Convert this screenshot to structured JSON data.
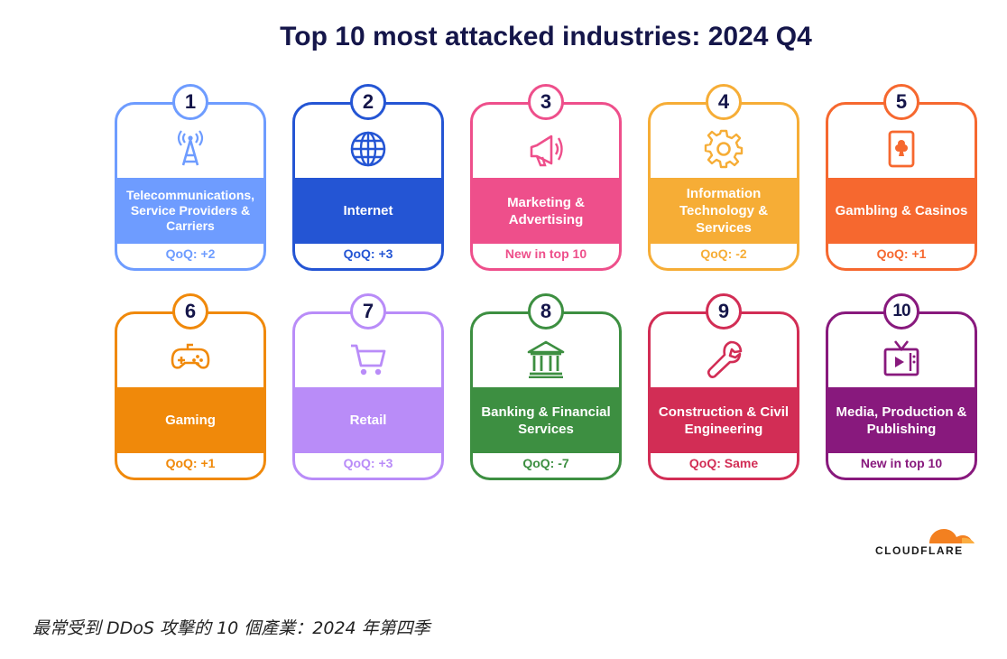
{
  "chart_data": {
    "type": "table",
    "title": "Top 10 most attacked industries: 2024 Q4",
    "columns": [
      "rank",
      "industry",
      "change"
    ],
    "rows": [
      {
        "rank": "1",
        "industry": "Telecommunications, Service Providers & Carriers",
        "change": "QoQ: +2",
        "color": "#6e9cff",
        "icon": "cell-tower-icon"
      },
      {
        "rank": "2",
        "industry": "Internet",
        "change": "QoQ: +3",
        "color": "#2455d4",
        "icon": "globe-icon"
      },
      {
        "rank": "3",
        "industry": "Marketing & Advertising",
        "change": "New in top 10",
        "color": "#ee4f8b",
        "icon": "megaphone-icon"
      },
      {
        "rank": "4",
        "industry": "Information Technology & Services",
        "change": "QoQ: -2",
        "color": "#f6ad36",
        "icon": "gear-icon"
      },
      {
        "rank": "5",
        "industry": "Gambling & Casinos",
        "change": "QoQ: +1",
        "color": "#f6682f",
        "icon": "playing-card-icon"
      },
      {
        "rank": "6",
        "industry": "Gaming",
        "change": "QoQ: +1",
        "color": "#f0890a",
        "icon": "gamepad-icon"
      },
      {
        "rank": "7",
        "industry": "Retail",
        "change": "QoQ: +3",
        "color": "#b98cf8",
        "icon": "shopping-cart-icon"
      },
      {
        "rank": "8",
        "industry": "Banking & Financial Services",
        "change": "QoQ: -7",
        "color": "#3d8f41",
        "icon": "bank-icon"
      },
      {
        "rank": "9",
        "industry": "Construction & Civil Engineering",
        "change": "QoQ: Same",
        "color": "#d22d55",
        "icon": "wrench-icon"
      },
      {
        "rank": "10",
        "industry": "Media, Production & Publishing",
        "change": "New in top 10",
        "color": "#88197d",
        "icon": "television-icon"
      }
    ]
  },
  "logo": {
    "text": "CLOUDFLARE",
    "color": "#f38020"
  },
  "caption": "最常受到 DDoS 攻擊的 10 個產業：2024 年第四季"
}
